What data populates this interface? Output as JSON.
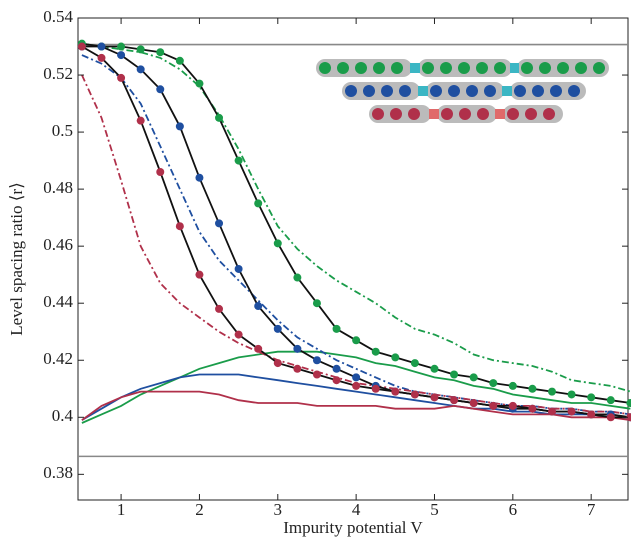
{
  "chart_data": {
    "type": "line",
    "xlabel": "Impurity potential V",
    "ylabel": "Level spacing ratio ⟨r⟩",
    "x": [
      0.5,
      0.75,
      1,
      1.25,
      1.5,
      1.75,
      2,
      2.25,
      2.5,
      2.75,
      3,
      3.25,
      3.5,
      3.75,
      4,
      4.25,
      4.5,
      4.75,
      5,
      5.25,
      5.5,
      5.75,
      6,
      6.25,
      6.5,
      6.75,
      7,
      7.25,
      7.5
    ],
    "xlim": [
      0.45,
      7.47
    ],
    "xticks": [
      1,
      2,
      3,
      4,
      5,
      6,
      7
    ],
    "ylim": [
      0.371,
      0.54
    ],
    "yticks": [
      0.38,
      0.4,
      0.42,
      0.44,
      0.46,
      0.48,
      0.5,
      0.52,
      0.54
    ],
    "hlines": [
      0.5307,
      0.3863
    ],
    "series": [
      {
        "color": "#1a9c4a",
        "style": "dots",
        "values": [
          0.531,
          0.53,
          0.53,
          0.529,
          0.528,
          0.525,
          0.517,
          0.505,
          0.49,
          0.475,
          0.461,
          0.449,
          0.44,
          0.431,
          0.427,
          0.423,
          0.421,
          0.419,
          0.417,
          0.415,
          0.414,
          0.412,
          0.411,
          0.41,
          0.409,
          0.408,
          0.407,
          0.406,
          0.405
        ]
      },
      {
        "color": "#1f4fa0",
        "style": "dots",
        "values": [
          0.53,
          0.53,
          0.527,
          0.522,
          0.515,
          0.502,
          0.484,
          0.468,
          0.452,
          0.439,
          0.431,
          0.424,
          0.42,
          0.417,
          0.414,
          0.411,
          0.409,
          0.408,
          0.407,
          0.406,
          0.405,
          0.404,
          0.403,
          0.403,
          0.402,
          0.402,
          0.401,
          0.401,
          0.4
        ]
      },
      {
        "color": "#b0304a",
        "style": "dots",
        "values": [
          0.53,
          0.526,
          0.519,
          0.504,
          0.486,
          0.467,
          0.45,
          0.438,
          0.429,
          0.424,
          0.419,
          0.417,
          0.415,
          0.413,
          0.411,
          0.41,
          0.409,
          0.408,
          0.407,
          0.406,
          0.405,
          0.404,
          0.404,
          0.403,
          0.402,
          0.402,
          0.401,
          0.4,
          0.4
        ]
      },
      {
        "color": "#1a9c4a",
        "style": "dashdot",
        "values": [
          0.531,
          0.53,
          0.529,
          0.528,
          0.526,
          0.522,
          0.516,
          0.506,
          0.494,
          0.48,
          0.467,
          0.459,
          0.453,
          0.448,
          0.444,
          0.44,
          0.435,
          0.431,
          0.429,
          0.426,
          0.422,
          0.42,
          0.419,
          0.418,
          0.416,
          0.413,
          0.412,
          0.411,
          0.409
        ]
      },
      {
        "color": "#1f4fa0",
        "style": "dashdot",
        "values": [
          0.527,
          0.524,
          0.519,
          0.51,
          0.495,
          0.48,
          0.465,
          0.455,
          0.448,
          0.441,
          0.434,
          0.428,
          0.424,
          0.42,
          0.417,
          0.414,
          0.411,
          0.409,
          0.408,
          0.407,
          0.406,
          0.405,
          0.404,
          0.404,
          0.403,
          0.403,
          0.402,
          0.402,
          0.401
        ]
      },
      {
        "color": "#b0304a",
        "style": "dashdot",
        "values": [
          0.52,
          0.505,
          0.483,
          0.46,
          0.447,
          0.44,
          0.435,
          0.43,
          0.426,
          0.423,
          0.42,
          0.418,
          0.416,
          0.414,
          0.412,
          0.411,
          0.41,
          0.409,
          0.408,
          0.407,
          0.406,
          0.405,
          0.404,
          0.404,
          0.403,
          0.403,
          0.402,
          0.402,
          0.401
        ]
      },
      {
        "color": "#1a9c4a",
        "style": "solid",
        "values": [
          0.398,
          0.401,
          0.404,
          0.408,
          0.411,
          0.414,
          0.417,
          0.419,
          0.421,
          0.422,
          0.423,
          0.423,
          0.423,
          0.422,
          0.421,
          0.419,
          0.418,
          0.416,
          0.414,
          0.413,
          0.411,
          0.41,
          0.408,
          0.407,
          0.406,
          0.405,
          0.405,
          0.404,
          0.403
        ]
      },
      {
        "color": "#1f4fa0",
        "style": "solid",
        "values": [
          0.399,
          0.403,
          0.407,
          0.41,
          0.412,
          0.414,
          0.415,
          0.415,
          0.415,
          0.414,
          0.413,
          0.412,
          0.411,
          0.41,
          0.409,
          0.408,
          0.407,
          0.406,
          0.405,
          0.404,
          0.403,
          0.403,
          0.402,
          0.402,
          0.401,
          0.401,
          0.401,
          0.4,
          0.4
        ]
      },
      {
        "color": "#b0304a",
        "style": "solid",
        "values": [
          0.399,
          0.404,
          0.407,
          0.409,
          0.409,
          0.409,
          0.409,
          0.408,
          0.406,
          0.405,
          0.405,
          0.405,
          0.404,
          0.404,
          0.404,
          0.404,
          0.403,
          0.403,
          0.403,
          0.404,
          0.403,
          0.402,
          0.401,
          0.401,
          0.401,
          0.4,
          0.4,
          0.4,
          0.399
        ]
      }
    ]
  }
}
